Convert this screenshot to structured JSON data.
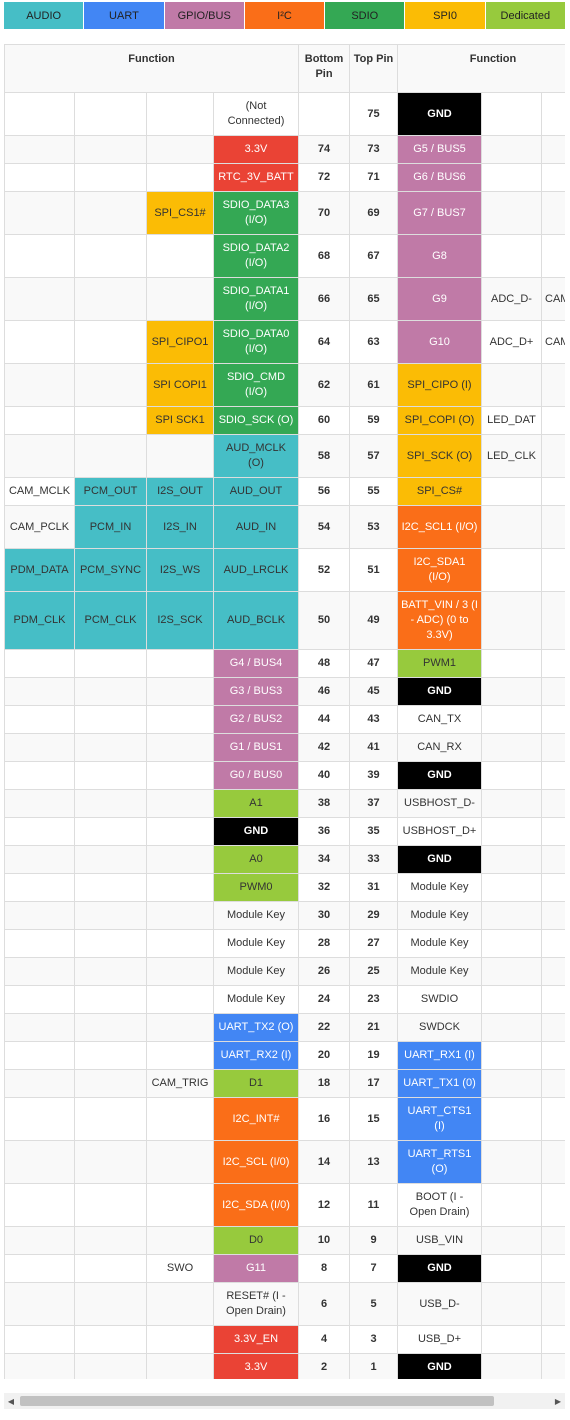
{
  "legend": [
    {
      "label": "AUDIO",
      "color": "#46bec6"
    },
    {
      "label": "UART",
      "color": "#4286f4"
    },
    {
      "label": "GPIO/BUS",
      "color": "#c07aa7"
    },
    {
      "label": "I²C",
      "color": "#fa6e18"
    },
    {
      "label": "SDIO",
      "color": "#34a854"
    },
    {
      "label": "SPI0",
      "color": "#fbbc05"
    },
    {
      "label": "Dedicated",
      "color": "#97ca3d"
    }
  ],
  "headers": {
    "function_left": "Function",
    "bottom_pin": "Bottom Pin",
    "top_pin": "Top Pin",
    "function_right": "Function"
  },
  "rows": [
    {
      "lf": [
        "",
        "",
        "",
        ""
      ],
      "bn": "",
      "tn": "75",
      "rf": [
        "",
        "",
        ""
      ],
      "lfc": [
        "",
        "",
        "",
        ""
      ],
      "rfc": [
        "gnd",
        "",
        ""
      ],
      "lp": "(Not Connected)",
      "rp": "GND"
    },
    {
      "lf": [
        "",
        "",
        "",
        ""
      ],
      "bn": "74",
      "tn": "73",
      "rf": [
        "",
        "",
        ""
      ],
      "lfc": [
        "",
        "",
        "",
        ""
      ],
      "rfc": [
        "gpio",
        "",
        ""
      ],
      "lp": "3.3V",
      "rp": "G5 / BUS5"
    },
    {
      "lf": [
        "",
        "",
        "",
        ""
      ],
      "bn": "72",
      "tn": "71",
      "rf": [
        "",
        "",
        ""
      ],
      "lfc": [
        "",
        "",
        "",
        ""
      ],
      "rfc": [
        "gpio",
        "",
        ""
      ],
      "lp": "RTC_3V_BATT",
      "rp": "G6 / BUS6"
    },
    {
      "lf": [
        "",
        "",
        "SPI_CS1#",
        ""
      ],
      "bn": "70",
      "tn": "69",
      "rf": [
        "",
        "",
        ""
      ],
      "lfc": [
        "",
        "",
        "spi",
        ""
      ],
      "rfc": [
        "gpio",
        "",
        ""
      ],
      "lp": "SDIO_DATA3 (I/O)",
      "rp": "G7 / BUS7"
    },
    {
      "lf": [
        "",
        "",
        "",
        ""
      ],
      "bn": "68",
      "tn": "67",
      "rf": [
        "",
        "",
        ""
      ],
      "lfc": [
        "",
        "",
        "",
        ""
      ],
      "rfc": [
        "gpio",
        "",
        ""
      ],
      "lp": "SDIO_DATA2 (I/O)",
      "rp": "G8"
    },
    {
      "lf": [
        "",
        "",
        "",
        ""
      ],
      "bn": "66",
      "tn": "65",
      "rf": [
        "",
        "ADC_D-",
        "CAM_HSYNC"
      ],
      "lfc": [
        "",
        "",
        "",
        ""
      ],
      "rfc": [
        "gpio",
        "",
        ""
      ],
      "lp": "SDIO_DATA1 (I/O)",
      "rp": "G9"
    },
    {
      "lf": [
        "",
        "",
        "SPI_CIPO1",
        ""
      ],
      "bn": "64",
      "tn": "63",
      "rf": [
        "",
        "ADC_D+",
        "CAM_VSYNC"
      ],
      "lfc": [
        "",
        "",
        "spi",
        ""
      ],
      "rfc": [
        "gpio",
        "",
        ""
      ],
      "lp": "SDIO_DATA0 (I/O)",
      "rp": "G10"
    },
    {
      "lf": [
        "",
        "",
        "SPI COPI1",
        ""
      ],
      "bn": "62",
      "tn": "61",
      "rf": [
        "",
        "",
        ""
      ],
      "lfc": [
        "",
        "",
        "spi",
        ""
      ],
      "rfc": [
        "spi",
        "",
        ""
      ],
      "lp": "SDIO_CMD (I/O)",
      "rp": "SPI_CIPO (I)"
    },
    {
      "lf": [
        "",
        "",
        "SPI SCK1",
        ""
      ],
      "bn": "60",
      "tn": "59",
      "rf": [
        "",
        "LED_DAT",
        ""
      ],
      "lfc": [
        "",
        "",
        "spi",
        ""
      ],
      "rfc": [
        "spi",
        "",
        ""
      ],
      "lp": "SDIO_SCK (O)",
      "rp": "SPI_COPI (O)"
    },
    {
      "lf": [
        "",
        "",
        "",
        ""
      ],
      "bn": "58",
      "tn": "57",
      "rf": [
        "",
        "LED_CLK",
        ""
      ],
      "lfc": [
        "",
        "",
        "",
        ""
      ],
      "rfc": [
        "spi",
        "",
        ""
      ],
      "lp": "AUD_MCLK (O)",
      "rp": "SPI_SCK (O)"
    },
    {
      "lf": [
        "CAM_MCLK",
        "PCM_OUT",
        "I2S_OUT",
        ""
      ],
      "bn": "56",
      "tn": "55",
      "rf": [
        "",
        "",
        ""
      ],
      "lfc": [
        "",
        "audio",
        "audio",
        ""
      ],
      "rfc": [
        "spi",
        "",
        ""
      ],
      "lp": "AUD_OUT",
      "rp": "SPI_CS#"
    },
    {
      "lf": [
        "CAM_PCLK",
        "PCM_IN",
        "I2S_IN",
        ""
      ],
      "bn": "54",
      "tn": "53",
      "rf": [
        "",
        "",
        ""
      ],
      "lfc": [
        "",
        "audio",
        "audio",
        ""
      ],
      "rfc": [
        "i2c",
        "",
        ""
      ],
      "lp": "AUD_IN",
      "rp": "I2C_SCL1 (I/O)"
    },
    {
      "lf": [
        "PDM_DATA",
        "PCM_SYNC",
        "I2S_WS",
        ""
      ],
      "bn": "52",
      "tn": "51",
      "rf": [
        "",
        "",
        ""
      ],
      "lfc": [
        "audio",
        "audio",
        "audio",
        ""
      ],
      "rfc": [
        "i2c",
        "",
        ""
      ],
      "lp": "AUD_LRCLK",
      "rp": "I2C_SDA1 (I/O)"
    },
    {
      "lf": [
        "PDM_CLK",
        "PCM_CLK",
        "I2S_SCK",
        ""
      ],
      "bn": "50",
      "tn": "49",
      "rf": [
        "",
        "",
        ""
      ],
      "lfc": [
        "audio",
        "audio",
        "audio",
        ""
      ],
      "rfc": [
        "i2c",
        "",
        ""
      ],
      "lp": "AUD_BCLK",
      "rp": "BATT_VIN / 3 (I - ADC) (0 to 3.3V)"
    },
    {
      "lf": [
        "",
        "",
        "",
        ""
      ],
      "bn": "48",
      "tn": "47",
      "rf": [
        "",
        "",
        ""
      ],
      "lfc": [
        "",
        "",
        "",
        ""
      ],
      "rfc": [
        "ded",
        "",
        ""
      ],
      "lp": "G4 / BUS4",
      "rp": "PWM1"
    },
    {
      "lf": [
        "",
        "",
        "",
        ""
      ],
      "bn": "46",
      "tn": "45",
      "rf": [
        "",
        "",
        ""
      ],
      "lfc": [
        "",
        "",
        "",
        ""
      ],
      "rfc": [
        "gnd",
        "",
        ""
      ],
      "lp": "G3 / BUS3",
      "rp": "GND"
    },
    {
      "lf": [
        "",
        "",
        "",
        ""
      ],
      "bn": "44",
      "tn": "43",
      "rf": [
        "",
        "",
        ""
      ],
      "lfc": [
        "",
        "",
        "",
        ""
      ],
      "rfc": [
        "",
        "",
        ""
      ],
      "lp": "G2 / BUS2",
      "rp": "CAN_TX"
    },
    {
      "lf": [
        "",
        "",
        "",
        ""
      ],
      "bn": "42",
      "tn": "41",
      "rf": [
        "",
        "",
        ""
      ],
      "lfc": [
        "",
        "",
        "",
        ""
      ],
      "rfc": [
        "",
        "",
        ""
      ],
      "lp": "G1 / BUS1",
      "rp": "CAN_RX"
    },
    {
      "lf": [
        "",
        "",
        "",
        ""
      ],
      "bn": "40",
      "tn": "39",
      "rf": [
        "",
        "",
        ""
      ],
      "lfc": [
        "",
        "",
        "",
        ""
      ],
      "rfc": [
        "gnd",
        "",
        ""
      ],
      "lp": "G0 / BUS0",
      "rp": "GND"
    },
    {
      "lf": [
        "",
        "",
        "",
        ""
      ],
      "bn": "38",
      "tn": "37",
      "rf": [
        "",
        "",
        ""
      ],
      "lfc": [
        "",
        "",
        "",
        ""
      ],
      "rfc": [
        "",
        "",
        ""
      ],
      "lp": "A1",
      "rp": "USBHOST_D-"
    },
    {
      "lf": [
        "",
        "",
        "",
        ""
      ],
      "bn": "36",
      "tn": "35",
      "rf": [
        "",
        "",
        ""
      ],
      "lfc": [
        "",
        "",
        "",
        ""
      ],
      "rfc": [
        "",
        "",
        ""
      ],
      "lp": "GND",
      "rp": "USBHOST_D+"
    },
    {
      "lf": [
        "",
        "",
        "",
        ""
      ],
      "bn": "34",
      "tn": "33",
      "rf": [
        "",
        "",
        ""
      ],
      "lfc": [
        "",
        "",
        "",
        ""
      ],
      "rfc": [
        "gnd",
        "",
        ""
      ],
      "lp": "A0",
      "rp": "GND"
    },
    {
      "lf": [
        "",
        "",
        "",
        ""
      ],
      "bn": "32",
      "tn": "31",
      "rf": [
        "",
        "",
        ""
      ],
      "lfc": [
        "",
        "",
        "",
        ""
      ],
      "rfc": [
        "",
        "",
        ""
      ],
      "lp": "PWM0",
      "rp": "Module Key"
    },
    {
      "lf": [
        "",
        "",
        "",
        ""
      ],
      "bn": "30",
      "tn": "29",
      "rf": [
        "",
        "",
        ""
      ],
      "lfc": [
        "",
        "",
        "",
        ""
      ],
      "rfc": [
        "",
        "",
        ""
      ],
      "lp": "Module Key",
      "rp": "Module Key"
    },
    {
      "lf": [
        "",
        "",
        "",
        ""
      ],
      "bn": "28",
      "tn": "27",
      "rf": [
        "",
        "",
        ""
      ],
      "lfc": [
        "",
        "",
        "",
        ""
      ],
      "rfc": [
        "",
        "",
        ""
      ],
      "lp": "Module Key",
      "rp": "Module Key"
    },
    {
      "lf": [
        "",
        "",
        "",
        ""
      ],
      "bn": "26",
      "tn": "25",
      "rf": [
        "",
        "",
        ""
      ],
      "lfc": [
        "",
        "",
        "",
        ""
      ],
      "rfc": [
        "",
        "",
        ""
      ],
      "lp": "Module Key",
      "rp": "Module Key"
    },
    {
      "lf": [
        "",
        "",
        "",
        ""
      ],
      "bn": "24",
      "tn": "23",
      "rf": [
        "",
        "",
        ""
      ],
      "lfc": [
        "",
        "",
        "",
        ""
      ],
      "rfc": [
        "",
        "",
        ""
      ],
      "lp": "Module Key",
      "rp": "SWDIO"
    },
    {
      "lf": [
        "",
        "",
        "",
        ""
      ],
      "bn": "22",
      "tn": "21",
      "rf": [
        "",
        "",
        ""
      ],
      "lfc": [
        "",
        "",
        "",
        ""
      ],
      "rfc": [
        "",
        "",
        ""
      ],
      "lp": "UART_TX2 (O)",
      "rp": "SWDCK"
    },
    {
      "lf": [
        "",
        "",
        "",
        ""
      ],
      "bn": "20",
      "tn": "19",
      "rf": [
        "",
        "",
        ""
      ],
      "lfc": [
        "",
        "",
        "",
        ""
      ],
      "rfc": [
        "uart",
        "",
        ""
      ],
      "lp": "UART_RX2 (I)",
      "rp": "UART_RX1 (I)"
    },
    {
      "lf": [
        "",
        "",
        "CAM_TRIG",
        ""
      ],
      "bn": "18",
      "tn": "17",
      "rf": [
        "",
        "",
        ""
      ],
      "lfc": [
        "",
        "",
        "",
        ""
      ],
      "rfc": [
        "uart",
        "",
        ""
      ],
      "lp": "D1",
      "rp": "UART_TX1 (0)"
    },
    {
      "lf": [
        "",
        "",
        "",
        ""
      ],
      "bn": "16",
      "tn": "15",
      "rf": [
        "",
        "",
        ""
      ],
      "lfc": [
        "",
        "",
        "",
        ""
      ],
      "rfc": [
        "uart",
        "",
        ""
      ],
      "lp": "I2C_INT#",
      "rp": "UART_CTS1 (I)"
    },
    {
      "lf": [
        "",
        "",
        "",
        ""
      ],
      "bn": "14",
      "tn": "13",
      "rf": [
        "",
        "",
        ""
      ],
      "lfc": [
        "",
        "",
        "",
        ""
      ],
      "rfc": [
        "uart",
        "",
        ""
      ],
      "lp": "I2C_SCL (I/0)",
      "rp": "UART_RTS1 (O)"
    },
    {
      "lf": [
        "",
        "",
        "",
        ""
      ],
      "bn": "12",
      "tn": "11",
      "rf": [
        "",
        "",
        ""
      ],
      "lfc": [
        "",
        "",
        "",
        ""
      ],
      "rfc": [
        "",
        "",
        ""
      ],
      "lp": "I2C_SDA (I/0)",
      "rp": "BOOT (I - Open Drain)"
    },
    {
      "lf": [
        "",
        "",
        "",
        ""
      ],
      "bn": "10",
      "tn": "9",
      "rf": [
        "",
        "",
        ""
      ],
      "lfc": [
        "",
        "",
        "",
        ""
      ],
      "rfc": [
        "",
        "",
        ""
      ],
      "lp": "D0",
      "rp": "USB_VIN"
    },
    {
      "lf": [
        "",
        "",
        "SWO",
        ""
      ],
      "bn": "8",
      "tn": "7",
      "rf": [
        "",
        "",
        ""
      ],
      "lfc": [
        "",
        "",
        "",
        ""
      ],
      "rfc": [
        "gnd",
        "",
        ""
      ],
      "lp": "G11",
      "rp": "GND"
    },
    {
      "lf": [
        "",
        "",
        "",
        ""
      ],
      "bn": "6",
      "tn": "5",
      "rf": [
        "",
        "",
        ""
      ],
      "lfc": [
        "",
        "",
        "",
        ""
      ],
      "rfc": [
        "",
        "",
        ""
      ],
      "lp": "RESET# (I - Open Drain)",
      "rp": "USB_D-"
    },
    {
      "lf": [
        "",
        "",
        "",
        ""
      ],
      "bn": "4",
      "tn": "3",
      "rf": [
        "",
        "",
        ""
      ],
      "lfc": [
        "",
        "",
        "",
        ""
      ],
      "rfc": [
        "",
        "",
        ""
      ],
      "lp": "3.3V_EN",
      "rp": "USB_D+"
    },
    {
      "lf": [
        "",
        "",
        "",
        ""
      ],
      "bn": "2",
      "tn": "1",
      "rf": [
        "",
        "",
        ""
      ],
      "lfc": [
        "",
        "",
        "",
        ""
      ],
      "rfc": [
        "gnd",
        "",
        ""
      ],
      "lp": "3.3V",
      "rp": "GND"
    }
  ],
  "left_pin_colors": [
    "",
    "pwr",
    "pwr",
    "sdio",
    "sdio",
    "sdio",
    "sdio",
    "sdio",
    "sdio",
    "audio",
    "audio",
    "audio",
    "audio",
    "audio",
    "gpio",
    "gpio",
    "gpio",
    "gpio",
    "gpio",
    "ded",
    "gnd",
    "ded",
    "ded",
    "",
    "",
    "",
    "",
    "uart",
    "uart",
    "ded",
    "i2c",
    "i2c",
    "i2c",
    "ded",
    "gpio",
    "",
    "pwr",
    "pwr"
  ],
  "row_heights": [
    43,
    28,
    28,
    43,
    43,
    43,
    43,
    43,
    28,
    43,
    28,
    43,
    43,
    58,
    28,
    28,
    28,
    28,
    28,
    28,
    28,
    28,
    28,
    28,
    28,
    28,
    28,
    28,
    28,
    28,
    43,
    43,
    43,
    28,
    28,
    43,
    28,
    28
  ],
  "scrollbar": {
    "left_arrow": "◀",
    "right_arrow": "▶"
  }
}
